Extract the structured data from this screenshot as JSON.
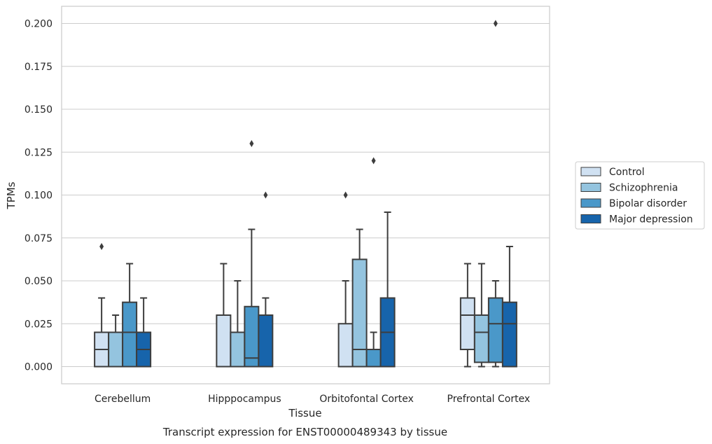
{
  "chart_data": {
    "type": "box",
    "caption": "Transcript expression for ENST00000489343 by tissue",
    "xlabel": "Tissue",
    "ylabel": "TPMs",
    "ylim": [
      -0.01,
      0.21
    ],
    "yticks": [
      "0.000",
      "0.025",
      "0.050",
      "0.075",
      "0.100",
      "0.125",
      "0.150",
      "0.175",
      "0.200"
    ],
    "grid": "horizontal",
    "legend_position": "outside-right",
    "categories": [
      "Cerebellum",
      "Hipppocampus",
      "Orbitofontal Cortex",
      "Prefrontal Cortex"
    ],
    "series": [
      {
        "name": "Control",
        "color": "#d0e1f2",
        "boxes": [
          {
            "whislo": 0.0,
            "q1": 0.0,
            "med": 0.01,
            "q3": 0.02,
            "whishi": 0.04,
            "fliers": [
              0.07
            ]
          },
          {
            "whislo": 0.0,
            "q1": 0.0,
            "med": 0.0,
            "q3": 0.03,
            "whishi": 0.06,
            "fliers": []
          },
          {
            "whislo": 0.0,
            "q1": 0.0,
            "med": 0.0,
            "q3": 0.025,
            "whishi": 0.05,
            "fliers": [
              0.1
            ]
          },
          {
            "whislo": 0.0,
            "q1": 0.01,
            "med": 0.03,
            "q3": 0.04,
            "whishi": 0.06,
            "fliers": []
          }
        ]
      },
      {
        "name": "Schizophrenia",
        "color": "#94c4df",
        "boxes": [
          {
            "whislo": 0.0,
            "q1": 0.0,
            "med": 0.0,
            "q3": 0.02,
            "whishi": 0.03,
            "fliers": []
          },
          {
            "whislo": 0.0,
            "q1": 0.0,
            "med": 0.0,
            "q3": 0.02,
            "whishi": 0.05,
            "fliers": []
          },
          {
            "whislo": 0.0,
            "q1": 0.0,
            "med": 0.01,
            "q3": 0.0625,
            "whishi": 0.08,
            "fliers": []
          },
          {
            "whislo": 0.0,
            "q1": 0.0025,
            "med": 0.02,
            "q3": 0.03,
            "whishi": 0.06,
            "fliers": []
          }
        ]
      },
      {
        "name": "Bipolar disorder",
        "color": "#4a98c9",
        "boxes": [
          {
            "whislo": 0.0,
            "q1": 0.0,
            "med": 0.02,
            "q3": 0.0375,
            "whishi": 0.06,
            "fliers": []
          },
          {
            "whislo": 0.0,
            "q1": 0.0,
            "med": 0.005,
            "q3": 0.035,
            "whishi": 0.08,
            "fliers": [
              0.13
            ]
          },
          {
            "whislo": 0.0,
            "q1": 0.0,
            "med": 0.01,
            "q3": 0.01,
            "whishi": 0.02,
            "fliers": [
              0.12
            ]
          },
          {
            "whislo": 0.0,
            "q1": 0.0025,
            "med": 0.025,
            "q3": 0.04,
            "whishi": 0.05,
            "fliers": [
              0.2
            ]
          }
        ]
      },
      {
        "name": "Major depression",
        "color": "#1764ab",
        "boxes": [
          {
            "whislo": 0.0,
            "q1": 0.0,
            "med": 0.01,
            "q3": 0.02,
            "whishi": 0.04,
            "fliers": []
          },
          {
            "whislo": 0.0,
            "q1": 0.0,
            "med": 0.0,
            "q3": 0.03,
            "whishi": 0.04,
            "fliers": [
              0.1
            ]
          },
          {
            "whislo": 0.0,
            "q1": 0.0,
            "med": 0.02,
            "q3": 0.04,
            "whishi": 0.09,
            "fliers": []
          },
          {
            "whislo": 0.0,
            "q1": 0.0,
            "med": 0.025,
            "q3": 0.0375,
            "whishi": 0.07,
            "fliers": []
          }
        ]
      }
    ]
  }
}
